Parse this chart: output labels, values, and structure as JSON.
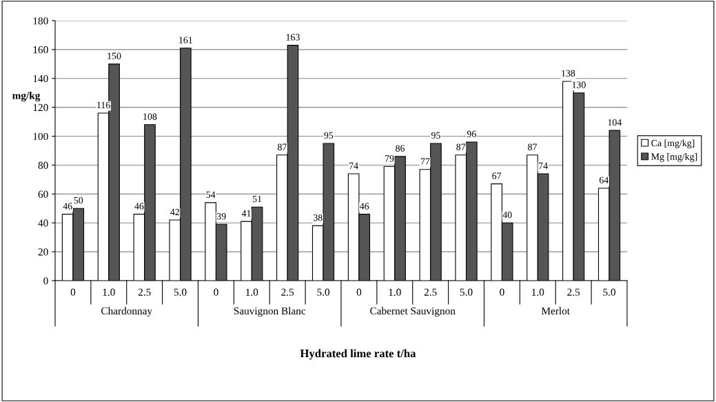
{
  "chart_data": {
    "type": "bar",
    "xlabel": "Hydrated lime rate t/ha",
    "ylabel": "mg/kg",
    "categories": [
      "0",
      "1.0",
      "2.5",
      "5.0",
      "0",
      "1.0",
      "2.5",
      "5.0",
      "0",
      "1.0",
      "2.5",
      "5.0",
      "0",
      "1.0",
      "2.5",
      "5.0"
    ],
    "annotations": [
      "Chardonnay",
      "Sauvignon Blanc",
      "Cabernet Sauvignon",
      "Merlot"
    ],
    "series": [
      {
        "name": "Ca [mg/kg]",
        "color": "#ffffff",
        "values": [
          46,
          116,
          46,
          42,
          54,
          41,
          87,
          38,
          74,
          79,
          77,
          87,
          67,
          87,
          138,
          64
        ]
      },
      {
        "name": "Mg [mg/kg]",
        "color": "#555555",
        "values": [
          50,
          150,
          108,
          161,
          39,
          51,
          163,
          95,
          46,
          86,
          95,
          96,
          40,
          74,
          130,
          104
        ]
      }
    ],
    "ylim": [
      0,
      180
    ],
    "yticks": [
      0,
      20,
      40,
      60,
      80,
      100,
      120,
      140,
      160,
      180
    ],
    "grid": "y",
    "legend": "right",
    "data_labels": true
  }
}
